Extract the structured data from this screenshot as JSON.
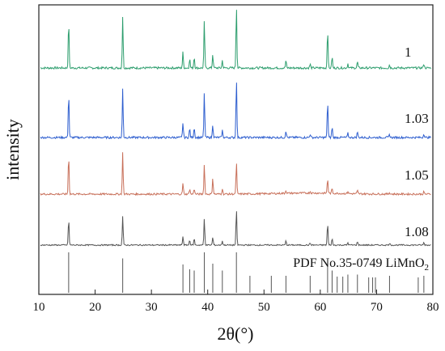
{
  "chart_data": {
    "type": "line",
    "xlabel": "2θ(°)",
    "ylabel": "intensity",
    "xlim": [
      10,
      80
    ],
    "xticks": [
      10,
      20,
      30,
      40,
      50,
      60,
      70,
      80
    ],
    "grid": false,
    "legend": "none",
    "peaks": [
      {
        "pos": 15.3,
        "h": 0.75
      },
      {
        "pos": 24.9,
        "h": 0.82
      },
      {
        "pos": 35.6,
        "h": 0.25
      },
      {
        "pos": 36.8,
        "h": 0.15
      },
      {
        "pos": 37.6,
        "h": 0.18
      },
      {
        "pos": 39.4,
        "h": 0.75
      },
      {
        "pos": 40.9,
        "h": 0.22
      },
      {
        "pos": 42.6,
        "h": 0.12
      },
      {
        "pos": 45.1,
        "h": 1.0
      },
      {
        "pos": 53.9,
        "h": 0.12
      },
      {
        "pos": 58.2,
        "h": 0.06
      },
      {
        "pos": 61.3,
        "h": 0.62
      },
      {
        "pos": 62.1,
        "h": 0.18
      },
      {
        "pos": 64.9,
        "h": 0.07
      },
      {
        "pos": 66.6,
        "h": 0.1
      },
      {
        "pos": 72.3,
        "h": 0.05
      },
      {
        "pos": 78.4,
        "h": 0.07
      }
    ],
    "series": [
      {
        "name": "1",
        "color": "#2e9e6e"
      },
      {
        "name": "1.03",
        "color": "#2f5fcf"
      },
      {
        "name": "1.05",
        "color": "#c8705a"
      },
      {
        "name": "1.08",
        "color": "#555555"
      }
    ],
    "reference": {
      "label_text": "PDF No.35-0749 LiMnO",
      "label_subscript": "2",
      "color": "#555555",
      "lines": [
        {
          "x": 15.3,
          "h": 1.0
        },
        {
          "x": 24.9,
          "h": 0.85
        },
        {
          "x": 35.6,
          "h": 0.7
        },
        {
          "x": 36.8,
          "h": 0.58
        },
        {
          "x": 37.6,
          "h": 0.55
        },
        {
          "x": 39.4,
          "h": 1.0
        },
        {
          "x": 40.9,
          "h": 0.72
        },
        {
          "x": 42.6,
          "h": 0.55
        },
        {
          "x": 45.1,
          "h": 1.0
        },
        {
          "x": 47.5,
          "h": 0.42
        },
        {
          "x": 51.3,
          "h": 0.42
        },
        {
          "x": 53.9,
          "h": 0.42
        },
        {
          "x": 58.2,
          "h": 0.42
        },
        {
          "x": 61.3,
          "h": 0.85
        },
        {
          "x": 62.1,
          "h": 0.55
        },
        {
          "x": 63.0,
          "h": 0.4
        },
        {
          "x": 64.0,
          "h": 0.4
        },
        {
          "x": 64.9,
          "h": 0.45
        },
        {
          "x": 66.6,
          "h": 0.45
        },
        {
          "x": 68.6,
          "h": 0.38
        },
        {
          "x": 69.3,
          "h": 0.38
        },
        {
          "x": 69.8,
          "h": 0.38
        },
        {
          "x": 72.3,
          "h": 0.42
        },
        {
          "x": 77.4,
          "h": 0.38
        },
        {
          "x": 78.4,
          "h": 0.42
        }
      ]
    }
  }
}
